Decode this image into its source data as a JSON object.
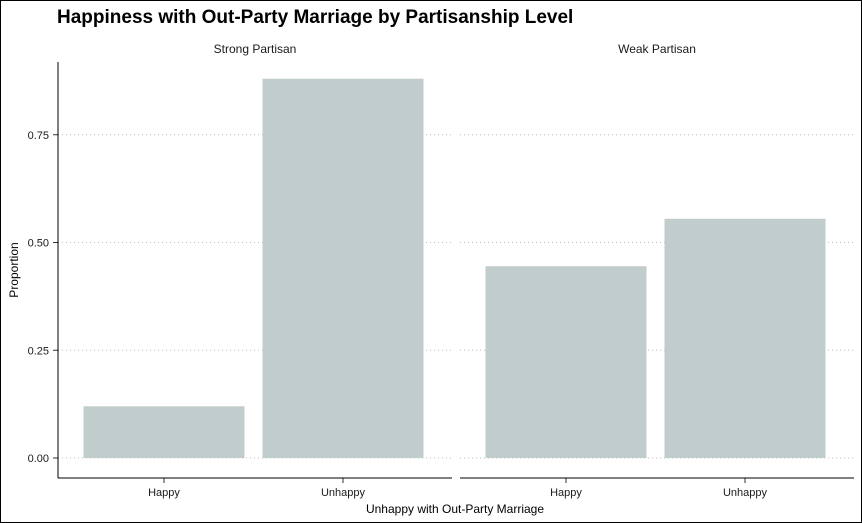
{
  "chart_data": {
    "type": "bar",
    "title": "Happiness with Out-Party Marriage by Partisanship Level",
    "xlabel": "Unhappy with Out-Party Marriage",
    "ylabel": "Proportion",
    "ylim": [
      0,
      0.92
    ],
    "yticks": [
      "0.00",
      "0.25",
      "0.50",
      "0.75"
    ],
    "grid": "horizontal dotted",
    "bar_color": "#c1cccc",
    "categories": [
      "Happy",
      "Unhappy"
    ],
    "facets": [
      {
        "name": "Strong Partisan",
        "values": [
          0.12,
          0.88
        ]
      },
      {
        "name": "Weak Partisan",
        "values": [
          0.445,
          0.555
        ]
      }
    ]
  }
}
